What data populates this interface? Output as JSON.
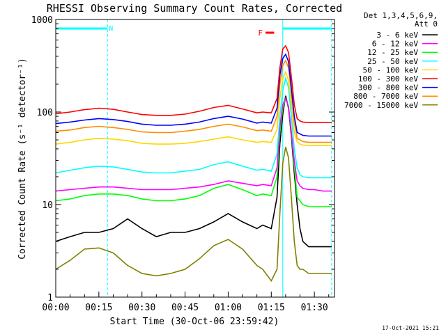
{
  "chart_data": {
    "type": "line",
    "title": "RHESSI Observing Summary Count Rates, Corrected",
    "xlabel": "Start Time (30-Oct-06 23:59:42)",
    "ylabel": "Corrected Count Rate (s⁻¹ detector⁻¹)",
    "y_scale": "log",
    "ylim": [
      1,
      1000
    ],
    "xlim_minutes": [
      0,
      97
    ],
    "x_ticks": [
      "00:00",
      "00:15",
      "00:30",
      "00:45",
      "01:00",
      "01:15",
      "01:30"
    ],
    "x_tick_minutes": [
      0,
      15,
      30,
      45,
      60,
      75,
      90
    ],
    "y_ticks": [
      "1",
      "10",
      "100",
      "1000"
    ],
    "y_tick_values": [
      1,
      10,
      100,
      1000
    ],
    "legend_header": [
      "Det 1,3,4,5,6,9,",
      "Att 0"
    ],
    "legend_position": "right",
    "grid": false,
    "annotations": {
      "night_label": "N",
      "flare_label": "F",
      "night_bar_minutes": [
        0,
        18
      ],
      "day_bar_minutes": [
        79,
        96
      ],
      "flare_bar_minutes": [
        73,
        76
      ],
      "marker_lines_minutes": [
        0,
        18,
        79,
        96
      ]
    },
    "x_sample_minutes": [
      0,
      5,
      10,
      15,
      20,
      25,
      30,
      35,
      40,
      45,
      50,
      55,
      60,
      65,
      70,
      72,
      75,
      77,
      78,
      79,
      80,
      81,
      82,
      83,
      84,
      85,
      86,
      88,
      90,
      93,
      96
    ],
    "series": [
      {
        "name": "3 - 6 keV",
        "color": "#000000",
        "values": [
          4,
          4.5,
          5,
          5,
          5.5,
          7,
          5.5,
          4.5,
          5,
          5,
          5.5,
          6.5,
          8,
          6.5,
          5.5,
          6,
          5.5,
          12,
          45,
          95,
          150,
          110,
          55,
          22,
          10,
          5.5,
          4,
          3.5,
          3.5,
          3.5,
          3.5
        ]
      },
      {
        "name": "6 - 12 keV",
        "color": "#ff00ff",
        "values": [
          14,
          14.5,
          15,
          15.5,
          15.5,
          15,
          14.5,
          14.5,
          14.5,
          15,
          15.5,
          16.5,
          18,
          17,
          16,
          16.5,
          16,
          25,
          70,
          120,
          140,
          115,
          60,
          30,
          18,
          16,
          15,
          14.5,
          14.5,
          14,
          14
        ]
      },
      {
        "name": "12 - 25 keV",
        "color": "#00ff00",
        "values": [
          11,
          11.5,
          12.5,
          13,
          13,
          12.5,
          11.5,
          11,
          11,
          11.5,
          12.5,
          15,
          16.5,
          14.5,
          12.5,
          13,
          12.5,
          20,
          60,
          110,
          140,
          115,
          60,
          26,
          12,
          11,
          10,
          9.5,
          9.5,
          9.5,
          9.5
        ]
      },
      {
        "name": "25 - 50 keV",
        "color": "#00ffff",
        "values": [
          22,
          23.5,
          25,
          26,
          25.5,
          24,
          22.5,
          22,
          22,
          23,
          24,
          27,
          29,
          26,
          23.5,
          24,
          23,
          35,
          90,
          170,
          230,
          185,
          90,
          40,
          25,
          21,
          20,
          19.5,
          19.5,
          19.5,
          19.5
        ]
      },
      {
        "name": "50 - 100 keV",
        "color": "#ffd700",
        "values": [
          45,
          47,
          50,
          52,
          51,
          49,
          46,
          45,
          45,
          46,
          48,
          51,
          54,
          50,
          47,
          48,
          47,
          65,
          140,
          230,
          270,
          220,
          120,
          60,
          48,
          45,
          44,
          43.5,
          43.5,
          43.5,
          43.5
        ]
      },
      {
        "name": "100 - 300 keV",
        "color": "#ff0000",
        "values": [
          96,
          100,
          106,
          110,
          107,
          100,
          94,
          92,
          92,
          95,
          102,
          112,
          118,
          108,
          98,
          100,
          98,
          140,
          300,
          480,
          520,
          440,
          240,
          120,
          85,
          80,
          78,
          77,
          77,
          77,
          77
        ]
      },
      {
        "name": "300 - 800 keV",
        "color": "#0000ff",
        "values": [
          75,
          78,
          82,
          85,
          83,
          79,
          74,
          72,
          72,
          74,
          78,
          85,
          90,
          84,
          76,
          78,
          76,
          110,
          250,
          380,
          420,
          350,
          180,
          90,
          60,
          58,
          56,
          55,
          55,
          55,
          55
        ]
      },
      {
        "name": "800 - 7000 keV",
        "color": "#ff8c00",
        "values": [
          62,
          64,
          68,
          70,
          68,
          65,
          61,
          60,
          60,
          62,
          65,
          70,
          74,
          69,
          63,
          64,
          62,
          90,
          200,
          320,
          360,
          300,
          160,
          78,
          52,
          50,
          48,
          47,
          47,
          47,
          47
        ]
      },
      {
        "name": "7000 - 15000 keV",
        "color": "#808000",
        "values": [
          2,
          2.5,
          3.3,
          3.4,
          3,
          2.2,
          1.8,
          1.7,
          1.8,
          2,
          2.6,
          3.6,
          4.2,
          3.3,
          2.2,
          2,
          1.5,
          2,
          8,
          28,
          42,
          32,
          12,
          4,
          2.2,
          2,
          2,
          1.8,
          1.8,
          1.8,
          1.8
        ]
      }
    ]
  },
  "footer": {
    "timestamp": "17-Oct-2021 15:21"
  }
}
